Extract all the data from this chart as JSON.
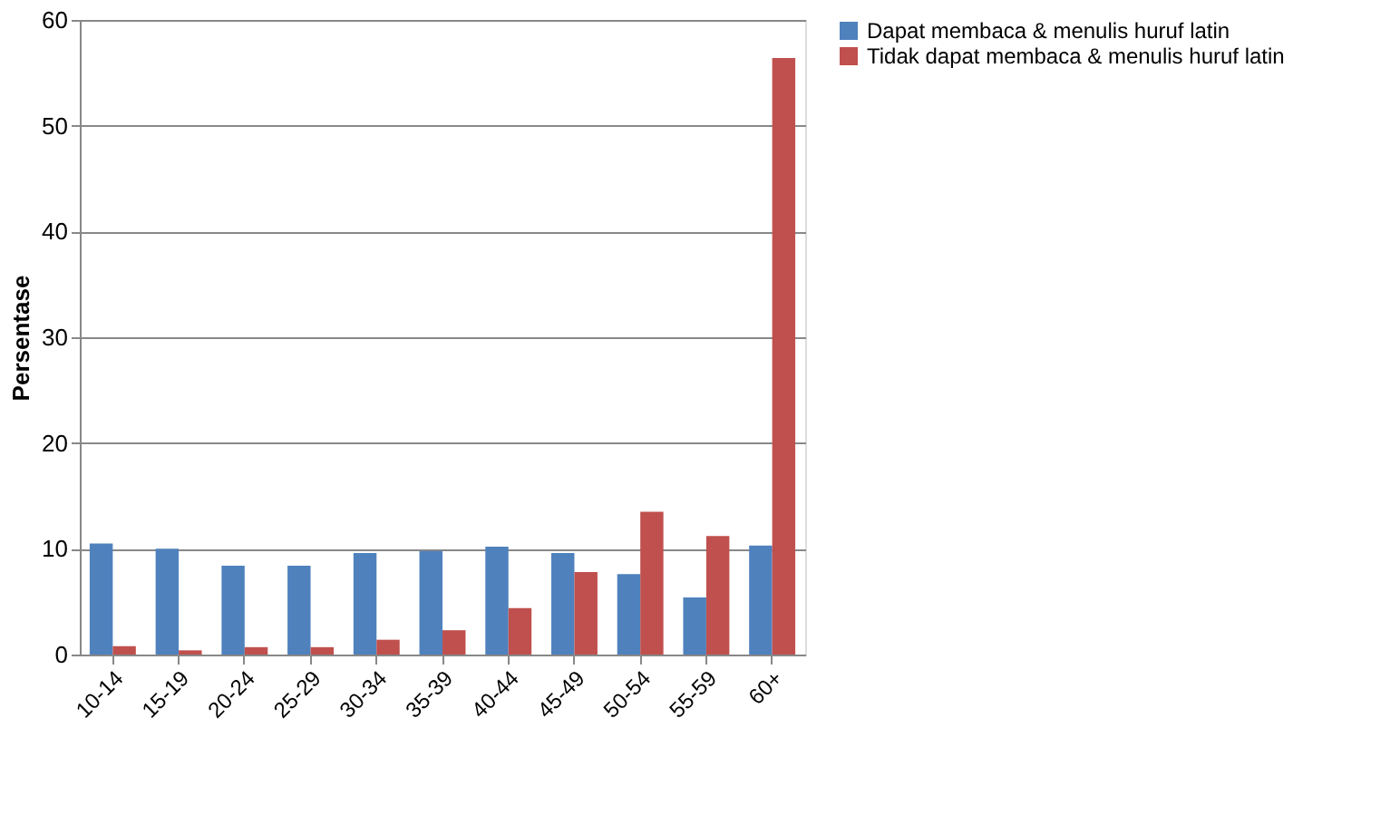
{
  "chart_data": {
    "type": "bar",
    "ylabel": "Persentase",
    "categories": [
      "10-14",
      "15-19",
      "20-24",
      "25-29",
      "30-34",
      "35-39",
      "40-44",
      "45-49",
      "50-54",
      "55-59",
      "60+"
    ],
    "series": [
      {
        "name": "Dapat membaca & menulis huruf latin",
        "color": "#4f81bd",
        "values": [
          10.5,
          10.0,
          8.4,
          8.4,
          9.6,
          9.8,
          10.2,
          9.6,
          7.6,
          5.4,
          10.3
        ]
      },
      {
        "name": "Tidak dapat membaca & menulis huruf latin",
        "color": "#c0504d",
        "values": [
          0.8,
          0.4,
          0.7,
          0.7,
          1.4,
          2.3,
          4.4,
          7.8,
          13.5,
          11.2,
          56.4
        ]
      }
    ],
    "ylim": [
      0,
      60
    ],
    "yticks": [
      0,
      10,
      20,
      30,
      40,
      50,
      60
    ],
    "grid": "y",
    "legend": "right"
  }
}
